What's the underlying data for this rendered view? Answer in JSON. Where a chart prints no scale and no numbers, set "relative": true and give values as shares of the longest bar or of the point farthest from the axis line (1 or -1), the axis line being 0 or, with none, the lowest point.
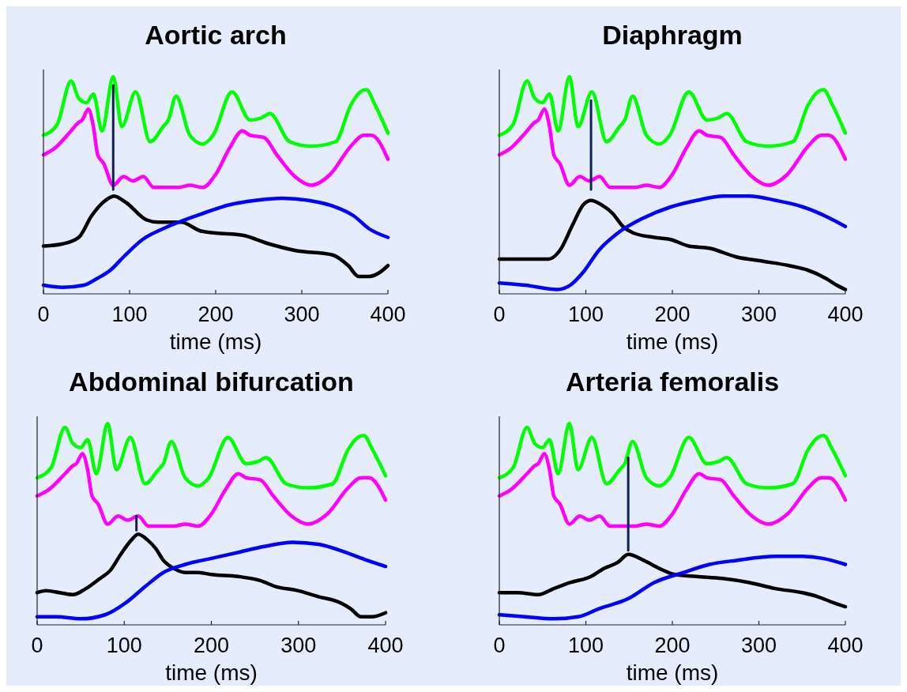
{
  "chart_data": [
    {
      "type": "line",
      "title": "Aortic arch",
      "xlabel": "time (ms)",
      "xlim": [
        0,
        400
      ],
      "xticks": [
        0,
        100,
        200,
        300,
        400
      ],
      "relative": true,
      "tick_labels": "x",
      "series": [
        {
          "color": "#00ff00",
          "x": [
            0,
            16,
            32,
            41,
            50,
            58,
            68,
            81,
            91,
            107,
            124,
            139,
            145,
            154,
            170,
            185,
            197,
            219,
            240,
            253,
            263,
            286,
            311,
            339,
            357,
            368,
            375,
            385,
            400
          ],
          "values": [
            0.73,
            0.78,
            0.98,
            0.9,
            0.88,
            0.92,
            0.75,
            1.0,
            0.77,
            0.93,
            0.7,
            0.77,
            0.8,
            0.91,
            0.73,
            0.69,
            0.73,
            0.93,
            0.8,
            0.81,
            0.83,
            0.7,
            0.68,
            0.7,
            0.87,
            0.93,
            0.94,
            0.87,
            0.74
          ]
        },
        {
          "color": "#ff00ff",
          "x": [
            0,
            13,
            32,
            41,
            45,
            52,
            58,
            63,
            70,
            81,
            93,
            104,
            116,
            128,
            139,
            157,
            170,
            185,
            200,
            216,
            231,
            240,
            256,
            271,
            292,
            311,
            333,
            357,
            372,
            381,
            400
          ],
          "values": [
            0.64,
            0.67,
            0.75,
            0.79,
            0.8,
            0.85,
            0.77,
            0.64,
            0.6,
            0.5,
            0.54,
            0.52,
            0.54,
            0.49,
            0.49,
            0.49,
            0.5,
            0.49,
            0.55,
            0.67,
            0.75,
            0.73,
            0.72,
            0.64,
            0.54,
            0.5,
            0.55,
            0.68,
            0.73,
            0.73,
            0.62
          ]
        },
        {
          "color": "#000000",
          "x": [
            0,
            22,
            41,
            56,
            72,
            82,
            96,
            120,
            133,
            148,
            160,
            182,
            200,
            231,
            262,
            292,
            335,
            354,
            366,
            378,
            391,
            400
          ],
          "values": [
            0.22,
            0.23,
            0.26,
            0.36,
            0.43,
            0.45,
            0.42,
            0.34,
            0.33,
            0.33,
            0.33,
            0.29,
            0.28,
            0.27,
            0.23,
            0.2,
            0.18,
            0.13,
            0.08,
            0.08,
            0.1,
            0.13
          ]
        },
        {
          "color": "#0000ff",
          "x": [
            0,
            22,
            47,
            62,
            78,
            93,
            115,
            139,
            157,
            185,
            216,
            246,
            277,
            308,
            339,
            360,
            378,
            400
          ],
          "values": [
            0.04,
            0.03,
            0.04,
            0.07,
            0.11,
            0.17,
            0.25,
            0.3,
            0.33,
            0.37,
            0.41,
            0.43,
            0.44,
            0.43,
            0.4,
            0.36,
            0.3,
            0.26
          ]
        },
        {
          "color": "#102050",
          "x": [
            81,
            81
          ],
          "values": [
            0.48,
            0.96
          ]
        }
      ]
    },
    {
      "type": "line",
      "title": "Diaphragm",
      "xlabel": "time (ms)",
      "xlim": [
        0,
        400
      ],
      "xticks": [
        0,
        100,
        200,
        300,
        400
      ],
      "relative": true,
      "tick_labels": "x",
      "series": [
        {
          "color": "#00ff00",
          "x": [
            0,
            16,
            32,
            41,
            50,
            58,
            68,
            81,
            91,
            107,
            124,
            139,
            145,
            154,
            170,
            185,
            197,
            219,
            240,
            253,
            263,
            286,
            311,
            339,
            357,
            368,
            375,
            385,
            400
          ],
          "values": [
            0.73,
            0.78,
            0.98,
            0.9,
            0.88,
            0.92,
            0.75,
            1.0,
            0.77,
            0.93,
            0.7,
            0.77,
            0.8,
            0.91,
            0.73,
            0.69,
            0.73,
            0.93,
            0.8,
            0.81,
            0.83,
            0.7,
            0.68,
            0.7,
            0.87,
            0.93,
            0.94,
            0.87,
            0.74
          ]
        },
        {
          "color": "#ff00ff",
          "x": [
            0,
            13,
            32,
            41,
            45,
            52,
            58,
            63,
            70,
            81,
            93,
            104,
            116,
            128,
            139,
            157,
            170,
            185,
            200,
            216,
            231,
            240,
            256,
            271,
            292,
            311,
            333,
            357,
            372,
            381,
            400
          ],
          "values": [
            0.64,
            0.67,
            0.75,
            0.79,
            0.8,
            0.85,
            0.77,
            0.64,
            0.6,
            0.5,
            0.54,
            0.52,
            0.54,
            0.49,
            0.49,
            0.49,
            0.5,
            0.49,
            0.55,
            0.67,
            0.75,
            0.73,
            0.72,
            0.64,
            0.54,
            0.5,
            0.55,
            0.68,
            0.73,
            0.73,
            0.62
          ]
        },
        {
          "color": "#000000",
          "x": [
            0,
            30,
            57,
            70,
            85,
            97,
            106,
            118,
            131,
            143,
            155,
            179,
            198,
            219,
            243,
            274,
            305,
            335,
            356,
            378,
            390,
            400
          ],
          "values": [
            0.16,
            0.16,
            0.16,
            0.2,
            0.32,
            0.41,
            0.43,
            0.41,
            0.37,
            0.31,
            0.28,
            0.26,
            0.25,
            0.22,
            0.21,
            0.17,
            0.15,
            0.13,
            0.11,
            0.07,
            0.04,
            0.02
          ]
        },
        {
          "color": "#0000ff",
          "x": [
            0,
            30,
            67,
            82,
            97,
            115,
            137,
            167,
            198,
            228,
            259,
            289,
            320,
            351,
            381,
            400
          ],
          "values": [
            0.05,
            0.04,
            0.02,
            0.04,
            0.1,
            0.2,
            0.28,
            0.35,
            0.4,
            0.43,
            0.45,
            0.45,
            0.43,
            0.4,
            0.35,
            0.31
          ]
        },
        {
          "color": "#102050",
          "x": [
            106,
            106
          ],
          "values": [
            0.48,
            0.89
          ]
        }
      ]
    },
    {
      "type": "line",
      "title": "Abdominal bifurcation",
      "xlabel": "time (ms)",
      "xlim": [
        0,
        400
      ],
      "xticks": [
        0,
        100,
        200,
        300,
        400
      ],
      "relative": true,
      "tick_labels": "x",
      "series": [
        {
          "color": "#00ff00",
          "x": [
            0,
            16,
            32,
            41,
            50,
            58,
            68,
            81,
            91,
            107,
            124,
            139,
            145,
            154,
            170,
            185,
            197,
            219,
            240,
            253,
            263,
            286,
            311,
            339,
            357,
            368,
            375,
            385,
            400
          ],
          "values": [
            0.73,
            0.78,
            0.98,
            0.9,
            0.88,
            0.92,
            0.75,
            1.0,
            0.77,
            0.93,
            0.7,
            0.77,
            0.8,
            0.91,
            0.73,
            0.69,
            0.73,
            0.93,
            0.8,
            0.81,
            0.83,
            0.7,
            0.68,
            0.7,
            0.87,
            0.93,
            0.94,
            0.87,
            0.74
          ]
        },
        {
          "color": "#ff00ff",
          "x": [
            0,
            13,
            32,
            41,
            45,
            52,
            58,
            63,
            70,
            81,
            93,
            104,
            116,
            128,
            139,
            157,
            170,
            185,
            200,
            216,
            231,
            240,
            256,
            271,
            292,
            311,
            333,
            357,
            372,
            381,
            400
          ],
          "values": [
            0.64,
            0.67,
            0.75,
            0.79,
            0.8,
            0.85,
            0.77,
            0.64,
            0.6,
            0.5,
            0.54,
            0.52,
            0.54,
            0.49,
            0.49,
            0.49,
            0.5,
            0.49,
            0.55,
            0.67,
            0.75,
            0.73,
            0.72,
            0.64,
            0.54,
            0.5,
            0.55,
            0.68,
            0.73,
            0.73,
            0.62
          ]
        },
        {
          "color": "#000000",
          "x": [
            0,
            10,
            26,
            41,
            56,
            72,
            84,
            96,
            108,
            116,
            127,
            136,
            145,
            157,
            170,
            185,
            200,
            231,
            256,
            274,
            299,
            323,
            348,
            360,
            372,
            384,
            400
          ],
          "values": [
            0.16,
            0.17,
            0.16,
            0.15,
            0.18,
            0.23,
            0.27,
            0.35,
            0.42,
            0.45,
            0.42,
            0.38,
            0.32,
            0.28,
            0.26,
            0.26,
            0.25,
            0.24,
            0.22,
            0.19,
            0.17,
            0.14,
            0.11,
            0.08,
            0.04,
            0.04,
            0.06
          ]
        },
        {
          "color": "#0000ff",
          "x": [
            0,
            22,
            50,
            78,
            102,
            124,
            145,
            170,
            200,
            231,
            262,
            293,
            323,
            354,
            379,
            400
          ],
          "values": [
            0.04,
            0.04,
            0.03,
            0.05,
            0.11,
            0.19,
            0.26,
            0.3,
            0.33,
            0.36,
            0.39,
            0.41,
            0.4,
            0.36,
            0.32,
            0.29
          ]
        },
        {
          "color": "#102050",
          "x": [
            114,
            114
          ],
          "values": [
            0.47,
            0.54
          ]
        }
      ]
    },
    {
      "type": "line",
      "title": "Arteria femoralis",
      "xlabel": "time (ms)",
      "xlim": [
        0,
        400
      ],
      "xticks": [
        0,
        100,
        200,
        300,
        400
      ],
      "relative": true,
      "tick_labels": "x",
      "series": [
        {
          "color": "#00ff00",
          "x": [
            0,
            16,
            32,
            41,
            50,
            58,
            68,
            81,
            91,
            107,
            124,
            139,
            145,
            154,
            170,
            185,
            197,
            219,
            240,
            253,
            263,
            286,
            311,
            339,
            357,
            368,
            375,
            385,
            400
          ],
          "values": [
            0.73,
            0.78,
            0.98,
            0.9,
            0.88,
            0.92,
            0.75,
            1.0,
            0.77,
            0.93,
            0.7,
            0.77,
            0.8,
            0.91,
            0.73,
            0.69,
            0.73,
            0.93,
            0.8,
            0.81,
            0.83,
            0.7,
            0.68,
            0.7,
            0.87,
            0.93,
            0.94,
            0.87,
            0.74
          ]
        },
        {
          "color": "#ff00ff",
          "x": [
            0,
            13,
            32,
            41,
            45,
            52,
            58,
            63,
            70,
            81,
            93,
            104,
            116,
            128,
            139,
            157,
            170,
            185,
            200,
            216,
            231,
            240,
            256,
            271,
            292,
            311,
            333,
            357,
            372,
            381,
            400
          ],
          "values": [
            0.64,
            0.67,
            0.75,
            0.79,
            0.8,
            0.85,
            0.77,
            0.64,
            0.6,
            0.5,
            0.54,
            0.52,
            0.54,
            0.49,
            0.49,
            0.49,
            0.5,
            0.49,
            0.55,
            0.67,
            0.75,
            0.73,
            0.72,
            0.64,
            0.54,
            0.5,
            0.55,
            0.68,
            0.73,
            0.73,
            0.62
          ]
        },
        {
          "color": "#000000",
          "x": [
            0,
            21,
            45,
            63,
            82,
            106,
            121,
            137,
            149,
            167,
            185,
            203,
            228,
            258,
            289,
            319,
            350,
            368,
            386,
            400
          ],
          "values": [
            0.16,
            0.16,
            0.15,
            0.18,
            0.21,
            0.24,
            0.28,
            0.31,
            0.35,
            0.32,
            0.28,
            0.25,
            0.24,
            0.23,
            0.21,
            0.18,
            0.16,
            0.14,
            0.11,
            0.09
          ]
        },
        {
          "color": "#0000ff",
          "x": [
            0,
            30,
            63,
            91,
            115,
            149,
            179,
            213,
            243,
            274,
            319,
            350,
            374,
            400
          ],
          "values": [
            0.05,
            0.04,
            0.03,
            0.04,
            0.08,
            0.13,
            0.21,
            0.26,
            0.3,
            0.32,
            0.34,
            0.34,
            0.33,
            0.3
          ]
        },
        {
          "color": "#102050",
          "x": [
            149,
            149
          ],
          "values": [
            0.37,
            0.83
          ]
        }
      ]
    }
  ]
}
